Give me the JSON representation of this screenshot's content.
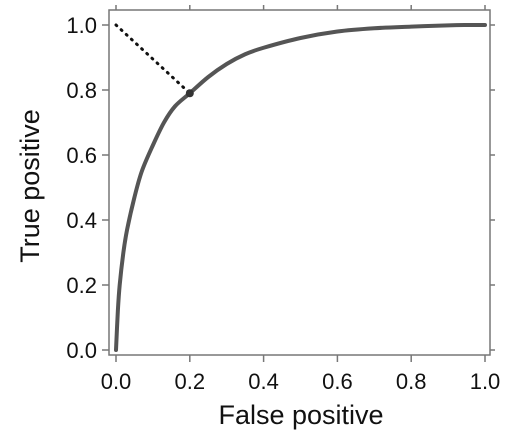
{
  "chart_data": {
    "type": "line",
    "title": "",
    "xlabel": "False positive",
    "ylabel": "True positive",
    "xlim": [
      0.0,
      1.0
    ],
    "ylim": [
      0.0,
      1.0
    ],
    "x_ticks": [
      "0.0",
      "0.2",
      "0.4",
      "0.6",
      "0.8",
      "1.0"
    ],
    "y_ticks": [
      "0.0",
      "0.2",
      "0.4",
      "0.6",
      "0.8",
      "1.0"
    ],
    "grid": false,
    "legend": "none",
    "series": [
      {
        "style": "solid",
        "color": "#555555",
        "x": [
          0.0,
          0.005,
          0.01,
          0.02,
          0.03,
          0.05,
          0.07,
          0.1,
          0.13,
          0.16,
          0.2,
          0.25,
          0.3,
          0.35,
          0.4,
          0.5,
          0.6,
          0.7,
          0.8,
          0.9,
          0.95,
          1.0
        ],
        "y": [
          0.0,
          0.12,
          0.2,
          0.3,
          0.37,
          0.47,
          0.55,
          0.63,
          0.7,
          0.75,
          0.79,
          0.84,
          0.88,
          0.91,
          0.93,
          0.96,
          0.98,
          0.99,
          0.995,
          0.999,
          1.0,
          1.0
        ]
      },
      {
        "style": "dotted",
        "color": "#111111",
        "x": [
          0.0,
          0.2
        ],
        "y": [
          1.0,
          0.79
        ]
      }
    ],
    "marker": {
      "x": 0.2,
      "y": 0.79,
      "color": "#333333"
    }
  }
}
